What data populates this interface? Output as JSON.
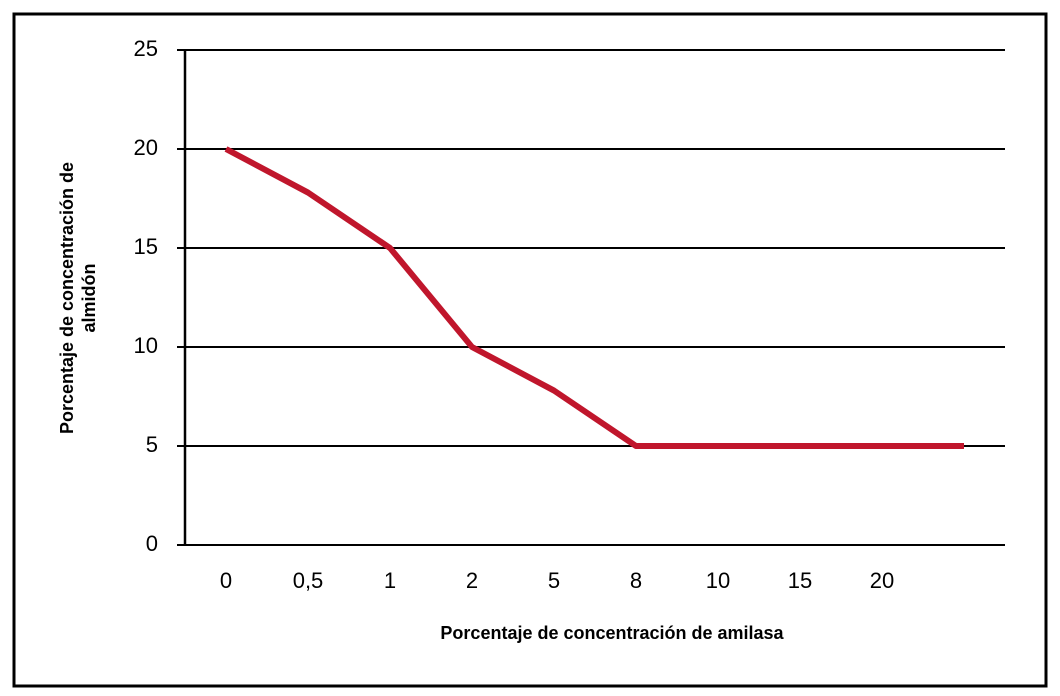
{
  "chart_data": {
    "type": "line",
    "categories": [
      "0",
      "0,5",
      "1",
      "2",
      "5",
      "8",
      "10",
      "15",
      "20",
      null
    ],
    "series": [
      {
        "color": "#c0162c",
        "values": [
          20,
          17.8,
          15,
          10,
          7.8,
          5,
          5,
          5,
          5,
          5
        ]
      }
    ],
    "xlabel": "Porcentaje de concentración de amilasa",
    "ylabel": [
      "Porcentaje de concentración de",
      "almidón"
    ],
    "ylim": [
      0,
      25
    ],
    "yticks": [
      0,
      5,
      10,
      15,
      20,
      25
    ],
    "grid": true
  }
}
